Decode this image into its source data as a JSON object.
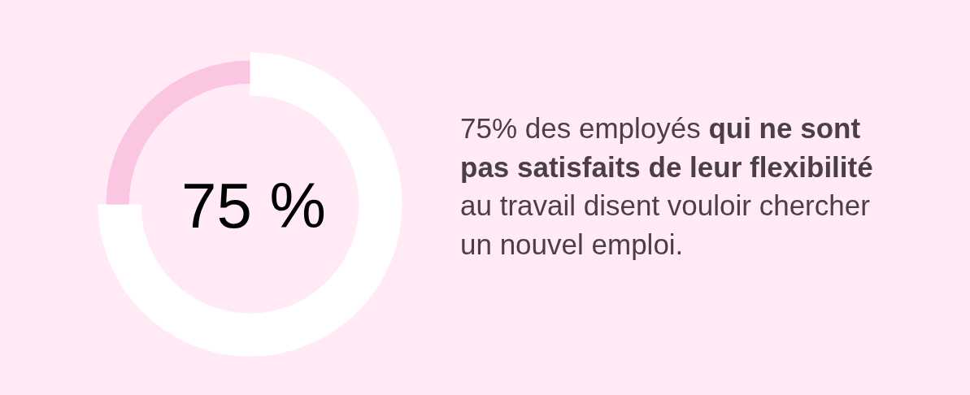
{
  "chart_data": {
    "type": "donut",
    "categories": [
      null,
      null
    ],
    "values": [
      75,
      25
    ],
    "colors": [
      "#ffffff",
      "#fbc6e2"
    ],
    "annotations": [
      "75 %",
      "75% des employés",
      "qui ne sont",
      "pas satisfaits de leur flexibilité",
      "au travail disent vouloir chercher",
      "un nouvel emploi."
    ]
  }
}
